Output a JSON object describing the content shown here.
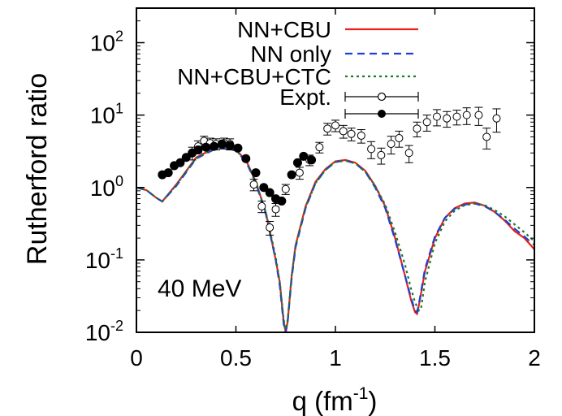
{
  "chart_data": {
    "type": "line",
    "xlabel": {
      "base": "q (fm",
      "sup": "-1",
      "close": ")"
    },
    "ylabel": "Rutherford ratio",
    "xlim": [
      0,
      2
    ],
    "ylim": [
      0.01,
      300
    ],
    "ylog": true,
    "grid": false,
    "legend_position": "top-right",
    "x_ticks": [
      {
        "value": 0,
        "label": "0"
      },
      {
        "value": 0.5,
        "label": "0.5"
      },
      {
        "value": 1,
        "label": "1"
      },
      {
        "value": 1.5,
        "label": "1.5"
      },
      {
        "value": 2,
        "label": "2"
      }
    ],
    "y_ticks": [
      {
        "value": 0.01,
        "base": "10",
        "exp": "-2"
      },
      {
        "value": 0.1,
        "base": "10",
        "exp": "-1"
      },
      {
        "value": 1,
        "base": "10",
        "exp": "0"
      },
      {
        "value": 10,
        "base": "10",
        "exp": "1"
      },
      {
        "value": 100,
        "base": "10",
        "exp": "2"
      }
    ],
    "annotation": "40 MeV",
    "series": [
      {
        "name": "NN+CBU",
        "style": "solid",
        "color": "#e8211c",
        "x": [
          0,
          0.05,
          0.1,
          0.13,
          0.2,
          0.3,
          0.4,
          0.45,
          0.5,
          0.55,
          0.6,
          0.65,
          0.7,
          0.72,
          0.74,
          0.75,
          0.76,
          0.78,
          0.8,
          0.85,
          0.9,
          0.95,
          1.0,
          1.05,
          1.1,
          1.15,
          1.2,
          1.25,
          1.3,
          1.35,
          1.38,
          1.4,
          1.41,
          1.42,
          1.45,
          1.5,
          1.55,
          1.6,
          1.65,
          1.7,
          1.75,
          1.8,
          1.85,
          1.9,
          1.95,
          2.0
        ],
        "y": [
          1.0,
          0.92,
          0.72,
          0.64,
          1.1,
          2.6,
          3.6,
          3.7,
          3.3,
          2.4,
          1.2,
          0.45,
          0.1,
          0.05,
          0.014,
          0.01,
          0.014,
          0.06,
          0.16,
          0.55,
          1.2,
          1.8,
          2.3,
          2.4,
          2.2,
          1.7,
          1.05,
          0.55,
          0.2,
          0.06,
          0.028,
          0.019,
          0.018,
          0.024,
          0.07,
          0.2,
          0.38,
          0.52,
          0.6,
          0.62,
          0.56,
          0.46,
          0.35,
          0.25,
          0.2,
          0.14
        ]
      },
      {
        "name": "NN only",
        "style": "dashed",
        "color": "#1f3fd6",
        "x": [
          0,
          0.05,
          0.1,
          0.13,
          0.2,
          0.3,
          0.4,
          0.45,
          0.5,
          0.55,
          0.6,
          0.65,
          0.7,
          0.72,
          0.74,
          0.75,
          0.76,
          0.78,
          0.8,
          0.85,
          0.9,
          0.95,
          1.0,
          1.05,
          1.1,
          1.15,
          1.2,
          1.25,
          1.3,
          1.35,
          1.38,
          1.4,
          1.41,
          1.42,
          1.45,
          1.5,
          1.55,
          1.6,
          1.65,
          1.7,
          1.75,
          1.8,
          1.85,
          1.9,
          1.95,
          2.0
        ],
        "y": [
          1.0,
          0.92,
          0.72,
          0.64,
          1.05,
          2.5,
          3.45,
          3.55,
          3.2,
          2.3,
          1.15,
          0.43,
          0.1,
          0.045,
          0.013,
          0.01,
          0.014,
          0.055,
          0.15,
          0.52,
          1.15,
          1.75,
          2.25,
          2.35,
          2.15,
          1.65,
          1.0,
          0.52,
          0.19,
          0.06,
          0.03,
          0.02,
          0.019,
          0.025,
          0.075,
          0.21,
          0.38,
          0.51,
          0.58,
          0.6,
          0.55,
          0.46,
          0.36,
          0.27,
          0.21,
          0.16
        ]
      },
      {
        "name": "NN+CBU+CTC",
        "style": "dotted",
        "color": "#1a7a2a",
        "x": [
          0,
          0.05,
          0.1,
          0.13,
          0.2,
          0.3,
          0.4,
          0.45,
          0.5,
          0.55,
          0.6,
          0.65,
          0.7,
          0.72,
          0.74,
          0.75,
          0.76,
          0.78,
          0.8,
          0.85,
          0.9,
          0.95,
          1.0,
          1.05,
          1.1,
          1.15,
          1.2,
          1.25,
          1.3,
          1.35,
          1.38,
          1.4,
          1.42,
          1.43,
          1.45,
          1.5,
          1.55,
          1.6,
          1.65,
          1.7,
          1.75,
          1.8,
          1.85,
          1.9,
          1.95,
          2.0
        ],
        "y": [
          1.0,
          0.92,
          0.72,
          0.64,
          1.08,
          2.55,
          3.5,
          3.6,
          3.25,
          2.35,
          1.18,
          0.46,
          0.11,
          0.05,
          0.015,
          0.011,
          0.015,
          0.06,
          0.16,
          0.53,
          1.15,
          1.75,
          2.25,
          2.35,
          2.15,
          1.65,
          1.05,
          0.58,
          0.24,
          0.085,
          0.04,
          0.026,
          0.02,
          0.021,
          0.05,
          0.17,
          0.34,
          0.48,
          0.57,
          0.6,
          0.57,
          0.49,
          0.4,
          0.31,
          0.24,
          0.18
        ]
      }
    ],
    "expt_open": {
      "name": "Expt.",
      "x": [
        0.28,
        0.31,
        0.34,
        0.37,
        0.4,
        0.44,
        0.47,
        0.59,
        0.63,
        0.67,
        0.7,
        0.75,
        0.82,
        0.87,
        0.92,
        0.96,
        1.0,
        1.04,
        1.08,
        1.13,
        1.18,
        1.23,
        1.28,
        1.32,
        1.37,
        1.41,
        1.46,
        1.51,
        1.56,
        1.61,
        1.66,
        1.72,
        1.76,
        1.81
      ],
      "y": [
        3.0,
        3.7,
        4.4,
        4.1,
        4.0,
        4.1,
        4.0,
        1.1,
        0.55,
        0.28,
        0.5,
        0.95,
        1.6,
        2.4,
        3.6,
        6.5,
        7.2,
        6.0,
        5.5,
        5.2,
        3.4,
        2.8,
        4.0,
        4.8,
        3.0,
        6.5,
        8.0,
        9.5,
        9.0,
        9.5,
        10.0,
        10.0,
        5.0,
        9.0
      ],
      "err": [
        0.6,
        0.7,
        0.7,
        0.7,
        0.7,
        0.7,
        0.7,
        0.2,
        0.1,
        0.06,
        0.1,
        0.15,
        0.3,
        0.4,
        0.6,
        1.2,
        1.3,
        1.2,
        1.1,
        1.1,
        0.9,
        0.7,
        1.1,
        1.2,
        0.8,
        1.5,
        2.0,
        2.4,
        2.2,
        2.2,
        2.6,
        2.8,
        1.6,
        3.2
      ]
    },
    "expt_filled": {
      "x": [
        0.13,
        0.16,
        0.19,
        0.22,
        0.25,
        0.28,
        0.31,
        0.35,
        0.39,
        0.43,
        0.47,
        0.51,
        0.55,
        0.6,
        0.64,
        0.67,
        0.7,
        0.73,
        0.78,
        0.81,
        0.84,
        0.88
      ],
      "y": [
        1.5,
        1.6,
        2.0,
        2.2,
        2.6,
        3.0,
        3.3,
        3.6,
        3.7,
        4.0,
        3.8,
        3.5,
        2.5,
        1.6,
        1.0,
        0.85,
        0.7,
        0.65,
        1.5,
        2.2,
        2.7,
        2.4
      ]
    }
  }
}
